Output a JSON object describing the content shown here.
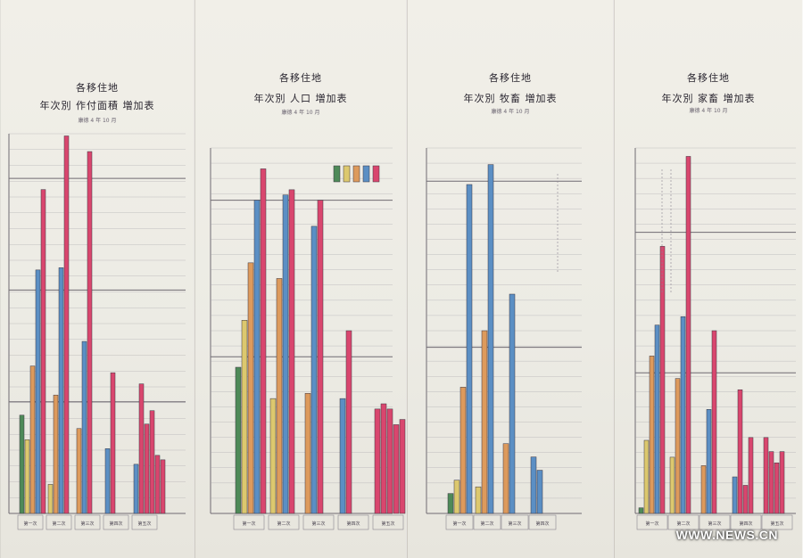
{
  "colors": {
    "green": "#4e8a58",
    "yellow": "#dcc86e",
    "orange": "#dd9a5c",
    "blue": "#5b8fc4",
    "pink": "#d9466e",
    "grid": "#9c9aa2",
    "major_grid": "#6f6a72"
  },
  "watermark": "",
  "credit": "WWW.NEWS.CN",
  "chart_data": [
    {
      "type": "bar",
      "title": "各移住地",
      "subtitle": "年次別 作付面積 増加表",
      "date": "康德 4 年 10 月",
      "categories": [
        "第一次",
        "第二次",
        "第三次",
        "第四次",
        "第五次"
      ],
      "series": [
        {
          "color": "green",
          "values": [
            44,
            null,
            null,
            null,
            null
          ]
        },
        {
          "color": "yellow",
          "values": [
            33,
            13,
            null,
            null,
            null
          ]
        },
        {
          "color": "orange",
          "values": [
            66,
            53,
            38,
            null,
            null
          ]
        },
        {
          "color": "blue",
          "values": [
            109,
            110,
            77,
            29,
            22
          ]
        },
        {
          "color": "pink",
          "values": [
            145,
            169,
            162,
            63,
            58
          ]
        },
        {
          "color": "pink",
          "values": [
            null,
            null,
            null,
            null,
            40
          ]
        },
        {
          "color": "pink",
          "values": [
            null,
            null,
            null,
            null,
            46
          ]
        },
        {
          "color": "pink",
          "values": [
            null,
            null,
            null,
            null,
            26
          ]
        },
        {
          "color": "pink",
          "values": [
            null,
            null,
            null,
            null,
            24
          ]
        }
      ],
      "ylim": [
        0,
        170
      ],
      "major_ticks": [
        50,
        100,
        150
      ],
      "note": ""
    },
    {
      "type": "bar",
      "title": "各移住地",
      "subtitle": "年次別 人口 増加表",
      "date": "康德 4 年 10 月",
      "categories": [
        "第一次",
        "第二次",
        "第三次",
        "第四次",
        "第五次"
      ],
      "series": [
        {
          "color": "green",
          "values": [
            28,
            null,
            null,
            null,
            null
          ]
        },
        {
          "color": "yellow",
          "values": [
            37,
            22,
            null,
            null,
            null
          ]
        },
        {
          "color": "orange",
          "values": [
            48,
            45,
            23,
            null,
            null
          ]
        },
        {
          "color": "blue",
          "values": [
            60,
            61,
            55,
            22,
            null
          ]
        },
        {
          "color": "pink",
          "values": [
            66,
            62,
            60,
            35,
            20
          ]
        },
        {
          "color": "pink",
          "values": [
            null,
            null,
            null,
            null,
            21
          ]
        },
        {
          "color": "pink",
          "values": [
            null,
            null,
            null,
            null,
            20
          ]
        },
        {
          "color": "pink",
          "values": [
            null,
            null,
            null,
            null,
            17
          ]
        },
        {
          "color": "pink",
          "values": [
            null,
            null,
            null,
            null,
            18
          ]
        }
      ],
      "ylim": [
        0,
        70
      ],
      "major_ticks": [
        30,
        60
      ],
      "legend": {
        "position": "top-right",
        "colors": [
          "green",
          "yellow",
          "orange",
          "blue",
          "pink"
        ]
      },
      "note": ""
    },
    {
      "type": "bar",
      "title": "各移住地",
      "subtitle": "年次別 牧畜 増加表",
      "date": "康德 4 年 10 月",
      "categories": [
        "第一次",
        "第二次",
        "第三次",
        "第四次"
      ],
      "series": [
        {
          "color": "green",
          "values": [
            6,
            null,
            null,
            null
          ]
        },
        {
          "color": "yellow",
          "values": [
            10,
            8,
            null,
            null
          ]
        },
        {
          "color": "orange",
          "values": [
            38,
            55,
            21,
            null
          ]
        },
        {
          "color": "blue",
          "values": [
            99,
            105,
            66,
            17
          ]
        },
        {
          "color": "blue",
          "values": [
            null,
            null,
            null,
            13
          ]
        }
      ],
      "ylim": [
        0,
        110
      ],
      "major_ticks": [
        50,
        100
      ],
      "note": ""
    },
    {
      "type": "bar",
      "title": "各移住地",
      "subtitle": "年次別 家畜 増加表",
      "date": "康德 4 年 10 月",
      "categories": [
        "第一次",
        "第二次",
        "第三次",
        "第四次",
        "第五次"
      ],
      "series": [
        {
          "color": "green",
          "values": [
            2,
            null,
            null,
            null,
            null
          ]
        },
        {
          "color": "yellow",
          "values": [
            26,
            20,
            null,
            null,
            null
          ]
        },
        {
          "color": "orange",
          "values": [
            56,
            48,
            17,
            null,
            null
          ]
        },
        {
          "color": "blue",
          "values": [
            67,
            70,
            37,
            13,
            null
          ]
        },
        {
          "color": "pink",
          "values": [
            95,
            127,
            65,
            44,
            27
          ]
        },
        {
          "color": "pink",
          "values": [
            null,
            null,
            null,
            10,
            22
          ]
        },
        {
          "color": "pink",
          "values": [
            null,
            null,
            null,
            27,
            18
          ]
        },
        {
          "color": "pink",
          "values": [
            null,
            null,
            null,
            null,
            22
          ]
        }
      ],
      "ylim": [
        0,
        130
      ],
      "major_ticks": [
        50,
        100
      ],
      "note": ""
    }
  ]
}
